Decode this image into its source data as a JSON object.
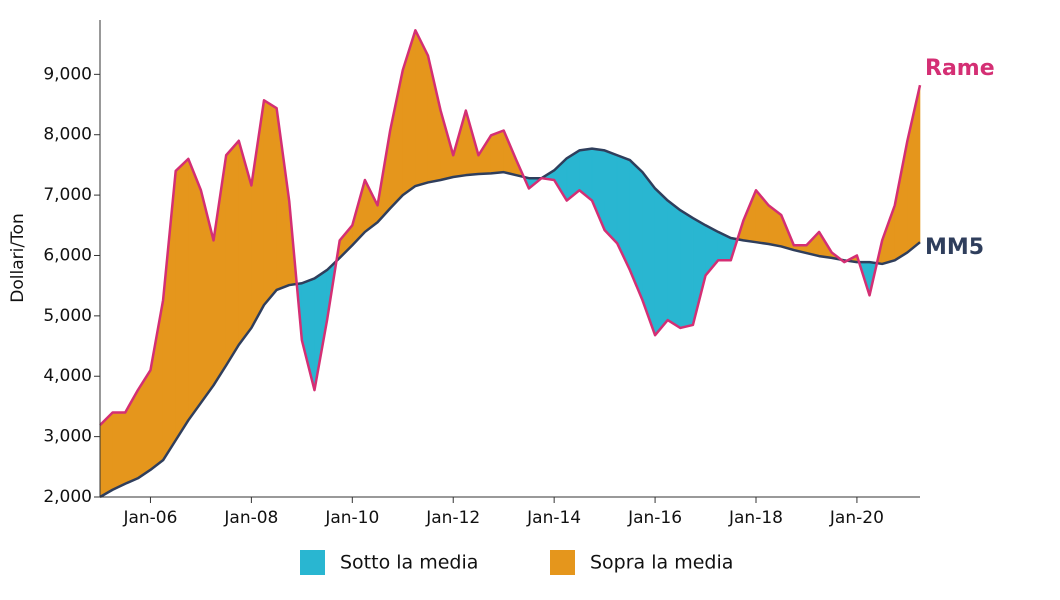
{
  "chart_data": {
    "type": "line",
    "y_label": "Dollari/Ton",
    "x": [
      2005,
      2005.25,
      2005.5,
      2005.75,
      2006,
      2006.25,
      2006.5,
      2006.75,
      2007,
      2007.25,
      2007.5,
      2007.75,
      2008,
      2008.25,
      2008.5,
      2008.75,
      2009,
      2009.25,
      2009.5,
      2009.75,
      2010,
      2010.25,
      2010.5,
      2010.75,
      2011,
      2011.25,
      2011.5,
      2011.75,
      2012,
      2012.25,
      2012.5,
      2012.75,
      2013,
      2013.25,
      2013.5,
      2013.75,
      2014,
      2014.25,
      2014.5,
      2014.75,
      2015,
      2015.25,
      2015.5,
      2015.75,
      2016,
      2016.25,
      2016.5,
      2016.75,
      2017,
      2017.25,
      2017.5,
      2017.75,
      2018,
      2018.25,
      2018.5,
      2018.75,
      2019,
      2019.25,
      2019.5,
      2019.75,
      2020,
      2020.25,
      2020.5,
      2020.75,
      2021,
      2021.25
    ],
    "series": [
      {
        "name": "Rame",
        "color": "#d42f74",
        "values": [
          3190,
          3400,
          3400,
          3770,
          4100,
          5260,
          7400,
          7600,
          7080,
          6250,
          7660,
          7900,
          7160,
          8570,
          8440,
          6900,
          4600,
          3770,
          4930,
          6250,
          6500,
          7250,
          6830,
          8070,
          9070,
          9730,
          9310,
          8400,
          7660,
          8400,
          7660,
          7990,
          8070,
          7580,
          7110,
          7280,
          7250,
          6910,
          7080,
          6910,
          6420,
          6200,
          5760,
          5260,
          4680,
          4930,
          4800,
          4850,
          5670,
          5920,
          5920,
          6580,
          7080,
          6830,
          6670,
          6170,
          6170,
          6390,
          6050,
          5890,
          6000,
          5340,
          6250,
          6830,
          7900,
          8820
        ]
      },
      {
        "name": "MM5",
        "color": "#2f3e5c",
        "values": [
          2000,
          2120,
          2220,
          2310,
          2450,
          2610,
          2940,
          3270,
          3560,
          3850,
          4180,
          4520,
          4800,
          5180,
          5430,
          5510,
          5540,
          5620,
          5760,
          5960,
          6170,
          6390,
          6550,
          6780,
          7000,
          7150,
          7210,
          7250,
          7300,
          7330,
          7350,
          7360,
          7380,
          7330,
          7280,
          7280,
          7410,
          7610,
          7740,
          7770,
          7740,
          7660,
          7580,
          7380,
          7110,
          6910,
          6750,
          6620,
          6500,
          6390,
          6290,
          6250,
          6220,
          6190,
          6150,
          6090,
          6040,
          5990,
          5960,
          5920,
          5890,
          5890,
          5860,
          5920,
          6050,
          6220
        ]
      }
    ],
    "legend": [
      {
        "name": "Sotto la media",
        "color": "#29b6d1"
      },
      {
        "name": "Sopra la media",
        "color": "#e5961c"
      }
    ],
    "xlim": [
      2005,
      2021.25
    ],
    "xticks": [
      {
        "value": 2006,
        "label": "Jan-06"
      },
      {
        "value": 2008,
        "label": "Jan-08"
      },
      {
        "value": 2010,
        "label": "Jan-10"
      },
      {
        "value": 2012,
        "label": "Jan-12"
      },
      {
        "value": 2014,
        "label": "Jan-14"
      },
      {
        "value": 2016,
        "label": "Jan-16"
      },
      {
        "value": 2018,
        "label": "Jan-18"
      },
      {
        "value": 2020,
        "label": "Jan-20"
      }
    ],
    "ylim": [
      2000,
      9900
    ],
    "yticks": [
      {
        "value": 2000,
        "label": "2,000"
      },
      {
        "value": 3000,
        "label": "3,000"
      },
      {
        "value": 4000,
        "label": "4,000"
      },
      {
        "value": 5000,
        "label": "5,000"
      },
      {
        "value": 6000,
        "label": "6,000"
      },
      {
        "value": 7000,
        "label": "7,000"
      },
      {
        "value": 8000,
        "label": "8,000"
      },
      {
        "value": 9000,
        "label": "9,000"
      }
    ],
    "grid": false
  }
}
